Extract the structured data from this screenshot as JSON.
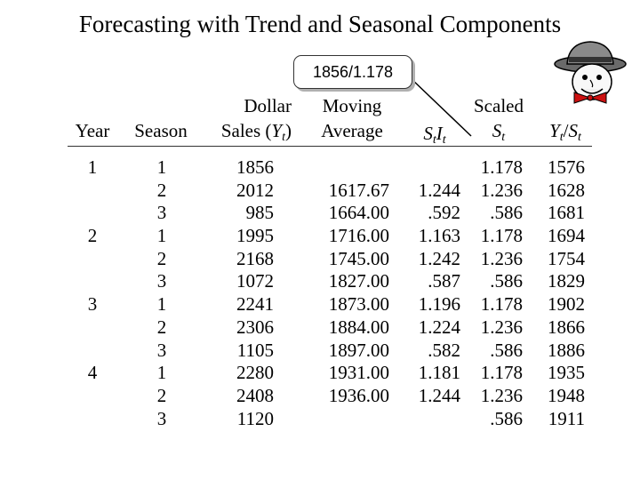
{
  "title": "Forecasting with Trend and Seasonal Components",
  "callout": "1856/1.178",
  "headers": {
    "year": "Year",
    "season": "Season",
    "sales_line1": "Dollar",
    "sales_line2": "Sales (",
    "sales_var": "Y",
    "sales_sub": "t",
    "sales_close": ")",
    "ma_line1": "Moving",
    "ma_line2": "Average",
    "si_s": "S",
    "si_s_sub": "t",
    "si_i": "I",
    "si_i_sub": "t",
    "scaled_line1": "Scaled",
    "scaled_var": "S",
    "scaled_sub": "t",
    "ratio_y": "Y",
    "ratio_y_sub": "t",
    "ratio_slash": "/",
    "ratio_s": "S",
    "ratio_s_sub": "t"
  },
  "years": [
    "1",
    "",
    "",
    "2",
    "",
    "",
    "3",
    "",
    "",
    "4",
    "",
    ""
  ],
  "seasons": [
    "1",
    "2",
    "3",
    "1",
    "2",
    "3",
    "1",
    "2",
    "3",
    "1",
    "2",
    "3"
  ],
  "sales": [
    "1856",
    "2012",
    "985",
    "1995",
    "2168",
    "1072",
    "2241",
    "2306",
    "1105",
    "2280",
    "2408",
    "1120"
  ],
  "moving_average": [
    "",
    "1617.67",
    "1664.00",
    "1716.00",
    "1745.00",
    "1827.00",
    "1873.00",
    "1884.00",
    "1897.00",
    "1931.00",
    "1936.00",
    ""
  ],
  "si": [
    "",
    "1.244",
    ".592",
    "1.163",
    "1.242",
    ".587",
    "1.196",
    "1.224",
    ".582",
    "1.181",
    "1.244",
    ""
  ],
  "scaled": [
    "1.178",
    "1.236",
    ".586",
    "1.178",
    "1.236",
    ".586",
    "1.178",
    "1.236",
    ".586",
    "1.178",
    "1.236",
    ".586"
  ],
  "deseasonalized": [
    "1576",
    "1628",
    "1681",
    "1694",
    "1754",
    "1829",
    "1902",
    "1866",
    "1886",
    "1935",
    "1948",
    "1911"
  ]
}
